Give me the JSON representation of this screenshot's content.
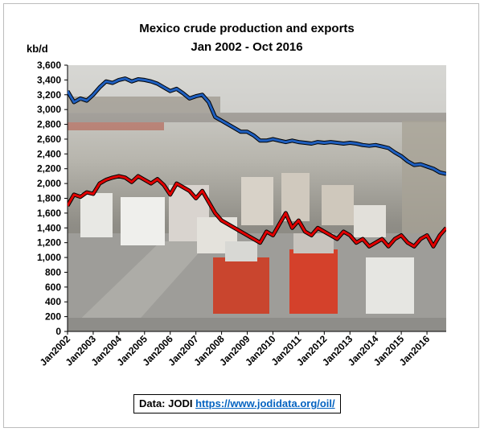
{
  "chart_data": {
    "type": "line",
    "title": "Mexico crude production and exports",
    "subtitle": "Jan 2002 - Oct 2016",
    "ylabel": "kb/d",
    "xlabel": "",
    "ylim": [
      0,
      3600
    ],
    "yticks": [
      0,
      200,
      400,
      600,
      800,
      1000,
      1200,
      1400,
      1600,
      1800,
      2000,
      2200,
      2400,
      2600,
      2800,
      3000,
      3200,
      3400,
      3600
    ],
    "ytick_labels": [
      "0",
      "200",
      "400",
      "600",
      "800",
      "1,000",
      "1,200",
      "1,400",
      "1,600",
      "1,800",
      "2,000",
      "2,200",
      "2,400",
      "2,600",
      "2,800",
      "3,000",
      "3,200",
      "3,400",
      "3,600"
    ],
    "xticks": [
      "Jan2002",
      "Jan2003",
      "Jan2004",
      "Jan2005",
      "Jan2006",
      "Jan2007",
      "Jan2008",
      "Jan2009",
      "Jan2010",
      "Jan2011",
      "Jan2012",
      "Jan2013",
      "Jan2014",
      "Jan2015",
      "Jan2016"
    ],
    "x_start": "2002-01",
    "x_end": "2016-10",
    "background": "photo of trucks on a highway (decorative)",
    "series": [
      {
        "color": "#1f5fbf",
        "x": [
          "2002-01",
          "2002-04",
          "2002-07",
          "2002-10",
          "2003-01",
          "2003-04",
          "2003-07",
          "2003-10",
          "2004-01",
          "2004-04",
          "2004-07",
          "2004-10",
          "2005-01",
          "2005-04",
          "2005-07",
          "2005-10",
          "2006-01",
          "2006-04",
          "2006-07",
          "2006-10",
          "2007-01",
          "2007-04",
          "2007-07",
          "2007-10",
          "2008-01",
          "2008-04",
          "2008-07",
          "2008-10",
          "2009-01",
          "2009-04",
          "2009-07",
          "2009-10",
          "2010-01",
          "2010-04",
          "2010-07",
          "2010-10",
          "2011-01",
          "2011-04",
          "2011-07",
          "2011-10",
          "2012-01",
          "2012-04",
          "2012-07",
          "2012-10",
          "2013-01",
          "2013-04",
          "2013-07",
          "2013-10",
          "2014-01",
          "2014-04",
          "2014-07",
          "2014-10",
          "2015-01",
          "2015-04",
          "2015-07",
          "2015-10",
          "2016-01",
          "2016-04",
          "2016-07",
          "2016-10"
        ],
        "values": [
          3250,
          3100,
          3150,
          3120,
          3200,
          3300,
          3380,
          3360,
          3400,
          3420,
          3380,
          3410,
          3400,
          3380,
          3350,
          3300,
          3250,
          3280,
          3220,
          3150,
          3180,
          3200,
          3100,
          2900,
          2850,
          2800,
          2750,
          2700,
          2700,
          2650,
          2580,
          2580,
          2600,
          2580,
          2560,
          2580,
          2560,
          2550,
          2540,
          2560,
          2550,
          2560,
          2550,
          2540,
          2550,
          2540,
          2520,
          2510,
          2520,
          2500,
          2480,
          2420,
          2370,
          2300,
          2250,
          2260,
          2230,
          2200,
          2150,
          2130
        ]
      },
      {
        "color": "#e00000",
        "x": [
          "2002-01",
          "2002-04",
          "2002-07",
          "2002-10",
          "2003-01",
          "2003-04",
          "2003-07",
          "2003-10",
          "2004-01",
          "2004-04",
          "2004-07",
          "2004-10",
          "2005-01",
          "2005-04",
          "2005-07",
          "2005-10",
          "2006-01",
          "2006-04",
          "2006-07",
          "2006-10",
          "2007-01",
          "2007-04",
          "2007-07",
          "2007-10",
          "2008-01",
          "2008-04",
          "2008-07",
          "2008-10",
          "2009-01",
          "2009-04",
          "2009-07",
          "2009-10",
          "2010-01",
          "2010-04",
          "2010-07",
          "2010-10",
          "2011-01",
          "2011-04",
          "2011-07",
          "2011-10",
          "2012-01",
          "2012-04",
          "2012-07",
          "2012-10",
          "2013-01",
          "2013-04",
          "2013-07",
          "2013-10",
          "2014-01",
          "2014-04",
          "2014-07",
          "2014-10",
          "2015-01",
          "2015-04",
          "2015-07",
          "2015-10",
          "2016-01",
          "2016-04",
          "2016-07",
          "2016-10"
        ],
        "values": [
          1700,
          1850,
          1820,
          1880,
          1860,
          2000,
          2050,
          2080,
          2100,
          2080,
          2020,
          2100,
          2050,
          2000,
          2060,
          1980,
          1850,
          2000,
          1950,
          1900,
          1800,
          1900,
          1750,
          1600,
          1500,
          1450,
          1400,
          1350,
          1300,
          1250,
          1200,
          1350,
          1300,
          1450,
          1600,
          1400,
          1500,
          1350,
          1300,
          1400,
          1350,
          1300,
          1250,
          1350,
          1300,
          1200,
          1250,
          1150,
          1200,
          1250,
          1150,
          1250,
          1300,
          1200,
          1150,
          1250,
          1300,
          1150,
          1300,
          1400
        ]
      }
    ]
  },
  "source": {
    "prefix": "Data: JODI ",
    "link": "https://www.jodidata.org/oil/"
  }
}
